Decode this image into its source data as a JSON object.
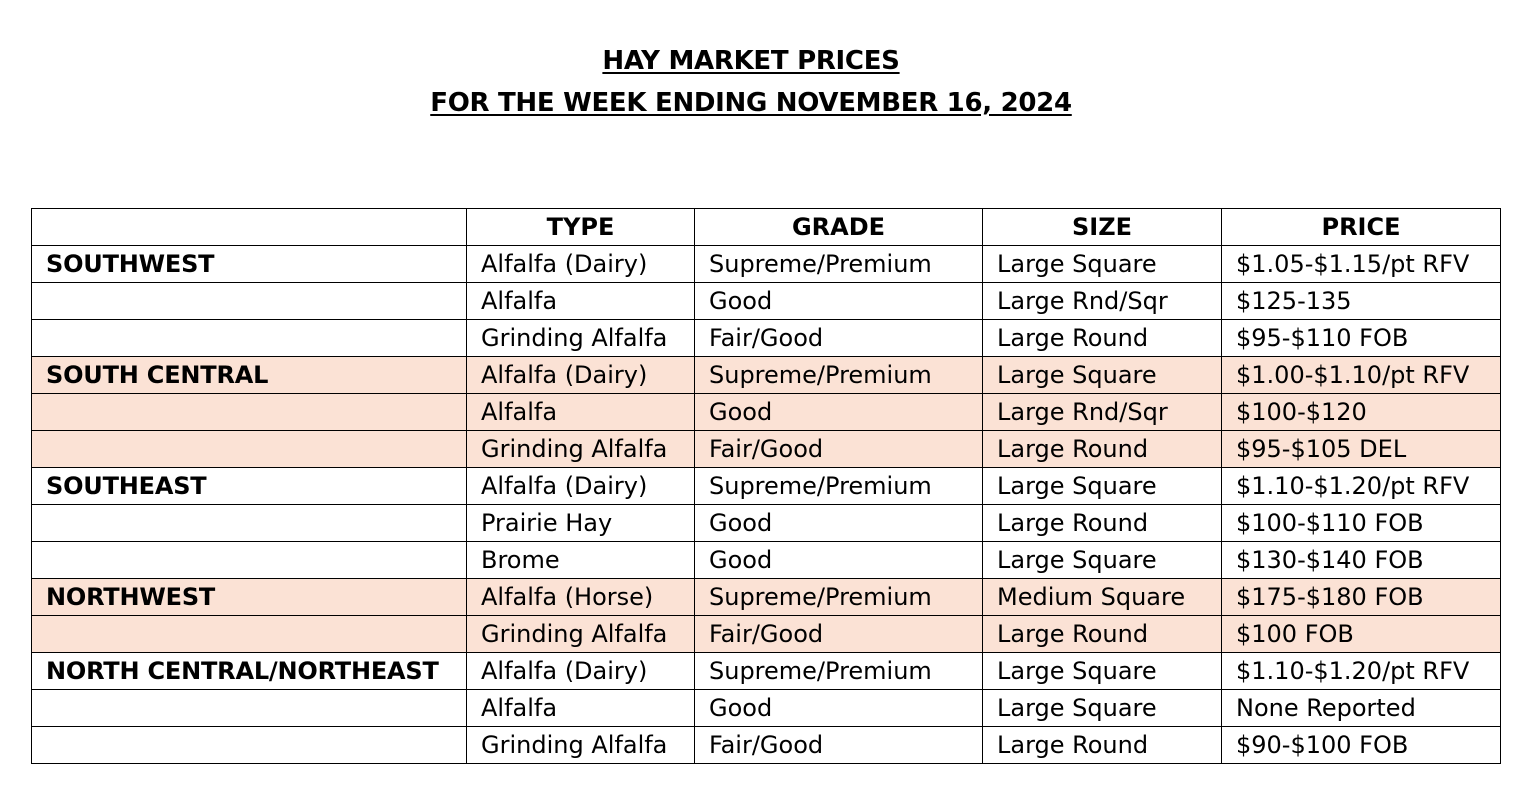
{
  "title": {
    "line1": "HAY MARKET PRICES",
    "line2": "FOR THE WEEK ENDING NOVEMBER 16, 2024"
  },
  "table": {
    "headers": [
      "",
      "TYPE",
      "GRADE",
      "SIZE",
      "PRICE"
    ],
    "shade_color": "#fbe2d5",
    "rows": [
      {
        "region": "SOUTHWEST",
        "type": "Alfalfa (Dairy)",
        "grade": "Supreme/Premium",
        "size": "Large Square",
        "price": "$1.05-$1.15/pt RFV",
        "shaded": false
      },
      {
        "region": "",
        "type": "Alfalfa",
        "grade": "Good",
        "size": "Large Rnd/Sqr",
        "price": "$125-135",
        "shaded": false
      },
      {
        "region": "",
        "type": "Grinding Alfalfa",
        "grade": "Fair/Good",
        "size": "Large Round",
        "price": "$95-$110 FOB",
        "shaded": false
      },
      {
        "region": "SOUTH CENTRAL",
        "type": "Alfalfa (Dairy)",
        "grade": "Supreme/Premium",
        "size": "Large Square",
        "price": "$1.00-$1.10/pt RFV",
        "shaded": true
      },
      {
        "region": "",
        "type": "Alfalfa",
        "grade": "Good",
        "size": "Large Rnd/Sqr",
        "price": "$100-$120",
        "shaded": true
      },
      {
        "region": "",
        "type": "Grinding Alfalfa",
        "grade": "Fair/Good",
        "size": "Large Round",
        "price": "$95-$105 DEL",
        "shaded": true
      },
      {
        "region": "SOUTHEAST",
        "type": "Alfalfa (Dairy)",
        "grade": "Supreme/Premium",
        "size": "Large Square",
        "price": "$1.10-$1.20/pt RFV",
        "shaded": false
      },
      {
        "region": "",
        "type": "Prairie Hay",
        "grade": "Good",
        "size": "Large Round",
        "price": "$100-$110 FOB",
        "shaded": false
      },
      {
        "region": "",
        "type": "Brome",
        "grade": "Good",
        "size": "Large Square",
        "price": "$130-$140 FOB",
        "shaded": false
      },
      {
        "region": "NORTHWEST",
        "type": "Alfalfa (Horse)",
        "grade": "Supreme/Premium",
        "size": "Medium Square",
        "price": "$175-$180 FOB",
        "shaded": true
      },
      {
        "region": "",
        "type": "Grinding Alfalfa",
        "grade": "Fair/Good",
        "size": "Large Round",
        "price": "$100 FOB",
        "shaded": true
      },
      {
        "region": "NORTH CENTRAL/NORTHEAST",
        "type": "Alfalfa (Dairy)",
        "grade": "Supreme/Premium",
        "size": "Large Square",
        "price": "$1.10-$1.20/pt RFV",
        "shaded": false
      },
      {
        "region": "",
        "type": "Alfalfa",
        "grade": "Good",
        "size": "Large Square",
        "price": "None Reported",
        "shaded": false
      },
      {
        "region": "",
        "type": "Grinding Alfalfa",
        "grade": "Fair/Good",
        "size": "Large Round",
        "price": "$90-$100 FOB",
        "shaded": false
      }
    ]
  }
}
